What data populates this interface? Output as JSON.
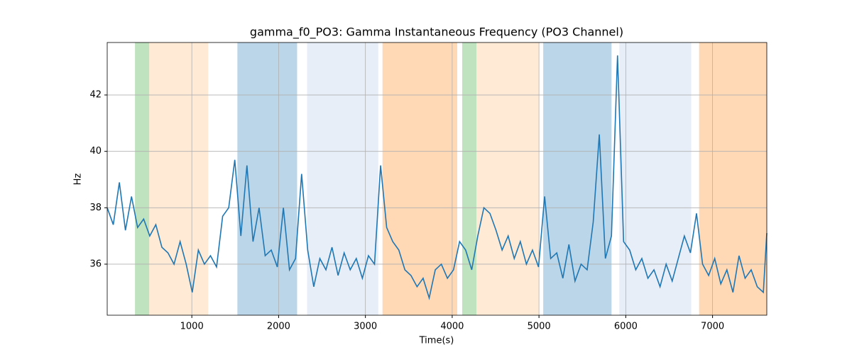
{
  "chart_data": {
    "type": "line",
    "title": "gamma_f0_PO3: Gamma Instantaneous Frequency (PO3 Channel)",
    "xlabel": "Time(s)",
    "ylabel": "Hz",
    "x": [
      25,
      95,
      165,
      235,
      305,
      375,
      445,
      515,
      585,
      655,
      725,
      795,
      865,
      935,
      1005,
      1075,
      1145,
      1215,
      1285,
      1355,
      1425,
      1495,
      1565,
      1635,
      1705,
      1775,
      1845,
      1915,
      1985,
      2055,
      2125,
      2195,
      2265,
      2335,
      2405,
      2475,
      2545,
      2615,
      2685,
      2755,
      2825,
      2895,
      2965,
      3035,
      3105,
      3175,
      3245,
      3315,
      3385,
      3455,
      3525,
      3595,
      3665,
      3735,
      3805,
      3875,
      3945,
      4015,
      4085,
      4155,
      4225,
      4295,
      4365,
      4435,
      4505,
      4575,
      4645,
      4715,
      4785,
      4855,
      4925,
      4995,
      5065,
      5135,
      5205,
      5275,
      5345,
      5415,
      5485,
      5555,
      5625,
      5695,
      5765,
      5835,
      5905,
      5975,
      6045,
      6115,
      6185,
      6255,
      6325,
      6395,
      6465,
      6535,
      6605,
      6675,
      6745,
      6815,
      6885,
      6955,
      7025,
      7095,
      7165,
      7235,
      7305,
      7375,
      7445,
      7515,
      7585,
      7625
    ],
    "values": [
      38.0,
      37.4,
      38.9,
      37.2,
      38.4,
      37.3,
      37.6,
      37.0,
      37.4,
      36.6,
      36.4,
      36.0,
      36.8,
      36.0,
      35.0,
      36.5,
      36.0,
      36.3,
      35.9,
      37.7,
      38.0,
      39.7,
      37.0,
      39.5,
      36.8,
      38.0,
      36.3,
      36.5,
      35.9,
      38.0,
      35.8,
      36.2,
      39.2,
      36.5,
      35.2,
      36.2,
      35.8,
      36.6,
      35.6,
      36.4,
      35.8,
      36.2,
      35.5,
      36.3,
      36.0,
      39.5,
      37.3,
      36.8,
      36.5,
      35.8,
      35.6,
      35.2,
      35.5,
      34.8,
      35.8,
      36.0,
      35.5,
      35.8,
      36.8,
      36.5,
      35.8,
      37.0,
      38.0,
      37.8,
      37.2,
      36.5,
      37.0,
      36.2,
      36.8,
      36.0,
      36.5,
      35.9,
      38.4,
      36.2,
      36.4,
      35.5,
      36.7,
      35.4,
      36.0,
      35.8,
      37.5,
      40.6,
      36.2,
      37.0,
      43.4,
      36.8,
      36.5,
      35.8,
      36.2,
      35.5,
      35.8,
      35.2,
      36.0,
      35.4,
      36.2,
      37.0,
      36.4,
      37.8,
      36.0,
      35.6,
      36.2,
      35.3,
      35.8,
      35.0,
      36.3,
      35.5,
      35.8,
      35.2,
      35.0,
      37.1
    ],
    "color": "#1f77b4",
    "spans": [
      {
        "start": 345,
        "end": 509,
        "color": "#2ca02c"
      },
      {
        "start": 509,
        "end": 1189,
        "color": "#ffbb78"
      },
      {
        "start": 1525,
        "end": 2213,
        "color": "#1f77b4"
      },
      {
        "start": 2328,
        "end": 3148,
        "color": "#aec7e8"
      },
      {
        "start": 3197,
        "end": 4058,
        "color": "#ff7f0e"
      },
      {
        "start": 4115,
        "end": 4279,
        "color": "#2ca02c"
      },
      {
        "start": 4279,
        "end": 5000,
        "color": "#ffbb78"
      },
      {
        "start": 5049,
        "end": 5836,
        "color": "#1f77b4"
      },
      {
        "start": 5926,
        "end": 6754,
        "color": "#aec7e8"
      },
      {
        "start": 6845,
        "end": 7625,
        "color": "#ff7f0e"
      }
    ],
    "span_alpha": 0.3,
    "xlim": [
      25,
      7625
    ],
    "ylim": [
      34.19,
      43.86
    ],
    "xticks": [
      1000,
      2000,
      3000,
      4000,
      5000,
      6000,
      7000
    ],
    "yticks": [
      36,
      38,
      40,
      42
    ],
    "grid": true
  }
}
